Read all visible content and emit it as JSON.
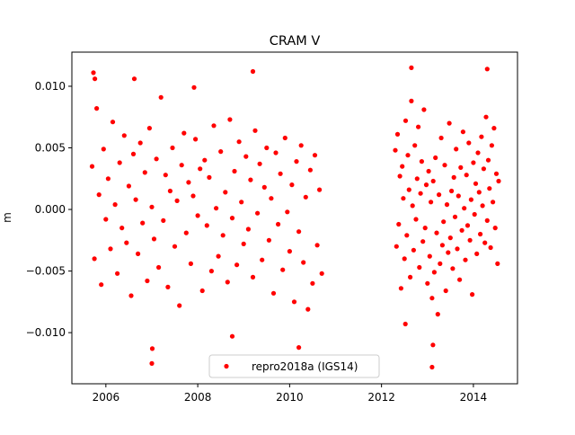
{
  "chart_data": {
    "type": "scatter",
    "title": "CRAM V",
    "xlabel": "",
    "ylabel": "m",
    "xlim": [
      2005.26,
      2014.96
    ],
    "ylim": [
      -0.01415,
      0.01277
    ],
    "xticks": [
      2006,
      2008,
      2010,
      2012,
      2014
    ],
    "xtick_labels": [
      "2006",
      "2008",
      "2010",
      "2012",
      "2014"
    ],
    "yticks": [
      0.01,
      0.005,
      0.0,
      -0.005,
      -0.01
    ],
    "ytick_labels": [
      "0.010",
      "0.005",
      "0.000",
      "−0.005",
      "−0.010"
    ],
    "grid": false,
    "legend_position": "lower center",
    "series": [
      {
        "name": "repro2018a (IGS14)",
        "color": "#ff0000",
        "marker": "circle",
        "x": [
          2005.7,
          2005.75,
          2005.8,
          2005.85,
          2005.9,
          2005.95,
          2006.0,
          2006.05,
          2006.1,
          2006.15,
          2006.2,
          2006.25,
          2006.3,
          2006.35,
          2006.4,
          2006.45,
          2006.5,
          2006.55,
          2006.6,
          2006.65,
          2006.7,
          2006.75,
          2006.8,
          2006.85,
          2006.9,
          2006.95,
          2007.0,
          2007.05,
          2007.1,
          2007.15,
          2007.2,
          2007.25,
          2007.3,
          2007.35,
          2007.4,
          2007.45,
          2007.5,
          2007.55,
          2007.6,
          2007.65,
          2007.7,
          2007.75,
          2007.8,
          2007.85,
          2007.9,
          2007.95,
          2008.0,
          2008.05,
          2008.1,
          2008.15,
          2008.2,
          2008.25,
          2008.3,
          2008.35,
          2008.4,
          2008.45,
          2008.5,
          2008.55,
          2008.6,
          2008.65,
          2008.7,
          2008.75,
          2008.8,
          2008.85,
          2008.9,
          2008.95,
          2009.0,
          2009.05,
          2009.1,
          2009.15,
          2009.2,
          2009.25,
          2009.3,
          2009.35,
          2009.4,
          2009.45,
          2009.5,
          2009.55,
          2009.6,
          2009.65,
          2009.7,
          2009.75,
          2009.8,
          2009.85,
          2009.9,
          2009.95,
          2010.0,
          2010.05,
          2010.1,
          2010.15,
          2010.2,
          2010.25,
          2010.3,
          2010.35,
          2010.4,
          2010.45,
          2010.5,
          2010.55,
          2010.6,
          2010.65,
          2010.7,
          2012.3,
          2012.325,
          2012.35,
          2012.375,
          2012.4,
          2012.425,
          2012.45,
          2012.475,
          2012.5,
          2012.525,
          2012.55,
          2012.575,
          2012.6,
          2012.625,
          2012.65,
          2012.675,
          2012.7,
          2012.725,
          2012.75,
          2012.775,
          2012.8,
          2012.825,
          2012.85,
          2012.875,
          2012.9,
          2012.925,
          2012.95,
          2012.975,
          2013.0,
          2013.025,
          2013.05,
          2013.075,
          2013.1,
          2013.125,
          2013.15,
          2013.175,
          2013.2,
          2013.225,
          2013.25,
          2013.275,
          2013.3,
          2013.325,
          2013.35,
          2013.375,
          2013.4,
          2013.425,
          2013.45,
          2013.475,
          2013.5,
          2013.525,
          2013.55,
          2013.575,
          2013.6,
          2013.625,
          2013.65,
          2013.675,
          2013.7,
          2013.725,
          2013.75,
          2013.775,
          2013.8,
          2013.825,
          2013.85,
          2013.875,
          2013.9,
          2013.925,
          2013.95,
          2013.975,
          2014.0,
          2014.025,
          2014.05,
          2014.075,
          2014.1,
          2014.125,
          2014.15,
          2014.175,
          2014.2,
          2014.225,
          2014.25,
          2014.275,
          2014.3,
          2014.325,
          2014.35,
          2014.375,
          2014.4,
          2014.425,
          2014.45,
          2014.475,
          2014.5,
          2014.525,
          2014.55,
          2005.73,
          2005.76,
          2007.0,
          2007.01,
          2008.75,
          2009.2,
          2010.2,
          2012.65,
          2013.1,
          2014.3,
          2012.52,
          2006.62,
          2007.92,
          2013.12
        ],
        "y": [
          0.0035,
          -0.004,
          0.0082,
          0.0012,
          -0.0061,
          0.0049,
          -0.0008,
          0.0025,
          -0.0032,
          0.0071,
          0.0004,
          -0.0052,
          0.0038,
          -0.0015,
          0.006,
          -0.0027,
          0.0019,
          -0.007,
          0.0045,
          0.0008,
          -0.0036,
          0.0054,
          -0.0011,
          0.003,
          -0.0058,
          0.0066,
          0.0002,
          -0.0024,
          0.0041,
          -0.0047,
          0.0091,
          -0.0009,
          0.0028,
          -0.0063,
          0.0015,
          0.005,
          -0.003,
          0.0007,
          -0.0078,
          0.0036,
          0.0062,
          -0.0019,
          0.0022,
          -0.0044,
          0.0011,
          0.0057,
          -0.0005,
          0.0033,
          -0.0066,
          0.004,
          -0.0013,
          0.0026,
          -0.005,
          0.0068,
          0.0001,
          -0.0038,
          0.0047,
          -0.0021,
          0.0014,
          -0.0059,
          0.0073,
          -0.0007,
          0.0031,
          -0.0045,
          0.0055,
          0.0006,
          -0.0028,
          0.0043,
          -0.0016,
          0.0024,
          -0.0055,
          0.0064,
          -0.0003,
          0.0037,
          -0.0041,
          0.0018,
          0.005,
          -0.0025,
          0.0009,
          -0.0068,
          0.0046,
          -0.0012,
          0.0029,
          -0.0049,
          0.0058,
          -0.0002,
          -0.0034,
          0.002,
          -0.0075,
          0.0039,
          -0.0018,
          0.0052,
          -0.0043,
          0.001,
          -0.0081,
          0.0032,
          -0.006,
          0.0044,
          -0.0029,
          0.0016,
          -0.0052,
          0.0048,
          -0.003,
          0.0061,
          -0.0012,
          0.0027,
          -0.0064,
          0.0035,
          0.0009,
          -0.004,
          0.0072,
          -0.0021,
          0.0044,
          0.0016,
          -0.0055,
          0.0088,
          0.0003,
          -0.0033,
          0.0052,
          -0.0008,
          0.0025,
          0.0067,
          -0.0047,
          0.0013,
          0.0039,
          -0.0026,
          0.0081,
          -0.0015,
          0.002,
          -0.006,
          0.0031,
          -0.0038,
          0.0006,
          -0.0072,
          0.0023,
          -0.0051,
          0.0042,
          -0.0019,
          -0.0085,
          0.0012,
          -0.0044,
          0.0058,
          -0.0029,
          -0.001,
          0.0036,
          -0.0066,
          0.0004,
          -0.0035,
          0.007,
          -0.0023,
          0.0015,
          -0.0048,
          0.0026,
          -0.0006,
          0.0049,
          -0.0032,
          0.0011,
          -0.0057,
          0.0034,
          -0.0017,
          0.0063,
          0.0001,
          -0.0041,
          0.0028,
          -0.0013,
          0.0054,
          -0.0025,
          0.0008,
          -0.0069,
          0.0038,
          -0.0004,
          0.0021,
          -0.0036,
          0.0046,
          0.0014,
          -0.002,
          0.0059,
          0.0003,
          0.0033,
          -0.0027,
          0.0075,
          -0.0009,
          0.004,
          0.0017,
          -0.0031,
          0.0052,
          0.0006,
          0.0066,
          -0.0015,
          0.0029,
          -0.0044,
          0.0023,
          0.0111,
          0.0106,
          -0.0125,
          -0.0113,
          -0.0103,
          0.0112,
          -0.0112,
          0.0115,
          -0.0128,
          0.0114,
          -0.0093,
          0.0106,
          0.0099,
          -0.011
        ]
      }
    ]
  }
}
